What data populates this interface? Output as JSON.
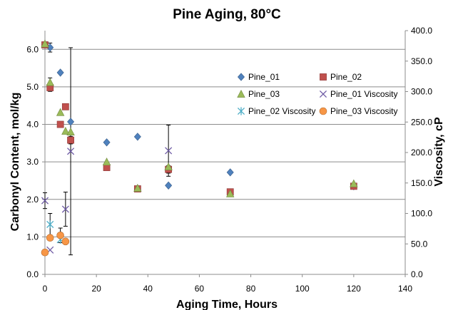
{
  "chart_data": {
    "type": "scatter",
    "title": "Pine Aging, 80°C",
    "xlabel": "Aging Time, Hours",
    "ylabel": "Carbonyl Content, mol/kg",
    "y2label": "Viscosity, cP",
    "xlim": [
      0,
      140
    ],
    "ylim": [
      0,
      6.5
    ],
    "y2lim": [
      0,
      400
    ],
    "xticks": [
      "0",
      "20",
      "40",
      "60",
      "80",
      "100",
      "120",
      "140"
    ],
    "yticks": [
      "0.0",
      "1.0",
      "2.0",
      "3.0",
      "4.0",
      "5.0",
      "6.0"
    ],
    "y2ticks": [
      "0.0",
      "50.0",
      "100.0",
      "150.0",
      "200.0",
      "250.0",
      "300.0",
      "350.0",
      "400.0"
    ],
    "grid": true,
    "legend_position": "right",
    "series": [
      {
        "name": "Pine_01",
        "axis": "left",
        "marker": "diamond",
        "color": "#4F81BD",
        "x": [
          0,
          2,
          6,
          10,
          24,
          36,
          48,
          72,
          120
        ],
        "y": [
          6.13,
          6.05,
          5.38,
          4.07,
          3.52,
          3.67,
          2.37,
          2.72,
          2.35
        ],
        "err": [
          0,
          0.12,
          0,
          0,
          0,
          0,
          0,
          0,
          0
        ]
      },
      {
        "name": "Pine_02",
        "axis": "left",
        "marker": "square",
        "color": "#C0504D",
        "x": [
          0,
          2,
          6,
          8,
          10,
          24,
          36,
          48,
          72,
          120
        ],
        "y": [
          6.12,
          4.98,
          4.0,
          4.47,
          3.58,
          2.85,
          2.28,
          2.8,
          2.2,
          2.35
        ],
        "err": [
          0,
          0.1,
          0,
          0,
          0.1,
          0,
          0,
          0.1,
          0,
          0
        ]
      },
      {
        "name": "Pine_03",
        "axis": "left",
        "marker": "triangle",
        "color": "#9BBB59",
        "x": [
          0,
          2,
          6,
          8,
          10,
          24,
          36,
          48,
          72,
          120
        ],
        "y": [
          6.15,
          5.12,
          4.32,
          3.82,
          3.8,
          3.0,
          2.3,
          2.87,
          2.15,
          2.42
        ],
        "err": [
          0,
          0.12,
          0,
          0,
          0,
          0,
          0,
          0,
          0,
          0
        ]
      },
      {
        "name": "Pine_01 Viscosity",
        "axis": "right",
        "marker": "x",
        "color": "#6F5CA5",
        "x": [
          0,
          2,
          8,
          10,
          48
        ],
        "y": [
          121,
          40,
          107,
          202,
          203
        ],
        "err": [
          13,
          0,
          28,
          170,
          42
        ]
      },
      {
        "name": "Pine_02 Viscosity",
        "axis": "right",
        "marker": "star",
        "color": "#4BACC6",
        "x": [
          2,
          6
        ],
        "y": [
          82,
          57
        ],
        "err": [
          18,
          0
        ]
      },
      {
        "name": "Pine_03 Viscosity",
        "axis": "right",
        "marker": "circle",
        "color": "#F79646",
        "x": [
          0,
          2,
          6,
          8
        ],
        "y": [
          36,
          60,
          64,
          54
        ],
        "err": [
          0,
          0,
          12,
          0
        ]
      }
    ]
  }
}
